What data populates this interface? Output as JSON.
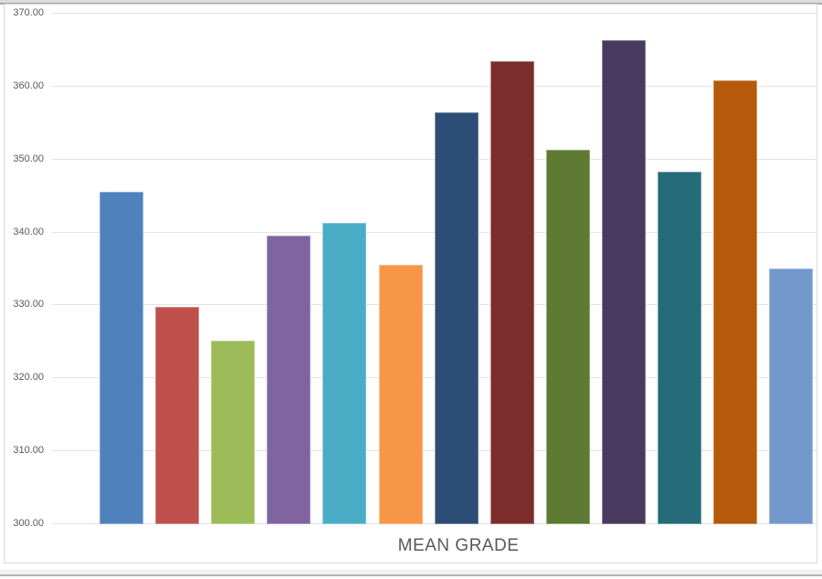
{
  "chart_data": {
    "type": "bar",
    "title": "",
    "xlabel": "MEAN GRADE",
    "ylabel": "",
    "ylim": [
      300,
      370
    ],
    "ytick_interval": 10,
    "ytick_labels": [
      "370.00",
      "360.00",
      "350.00",
      "340.00",
      "330.00",
      "320.00",
      "310.00",
      "300.00"
    ],
    "grid": true,
    "legend_position": "none",
    "category_labels_visible": false,
    "values": [
      345.5,
      329.7,
      325.1,
      339.4,
      341.2,
      335.5,
      356.4,
      363.4,
      351.2,
      366.2,
      348.2,
      360.7,
      335.0
    ],
    "bar_colors": [
      "#4f81bd",
      "#c0504d",
      "#9bbb59",
      "#8064a2",
      "#4bacc6",
      "#f79646",
      "#2c4d76",
      "#7b2d2b",
      "#5e7a33",
      "#483a5e",
      "#266b79",
      "#b45a0a",
      "#7399cc"
    ]
  }
}
